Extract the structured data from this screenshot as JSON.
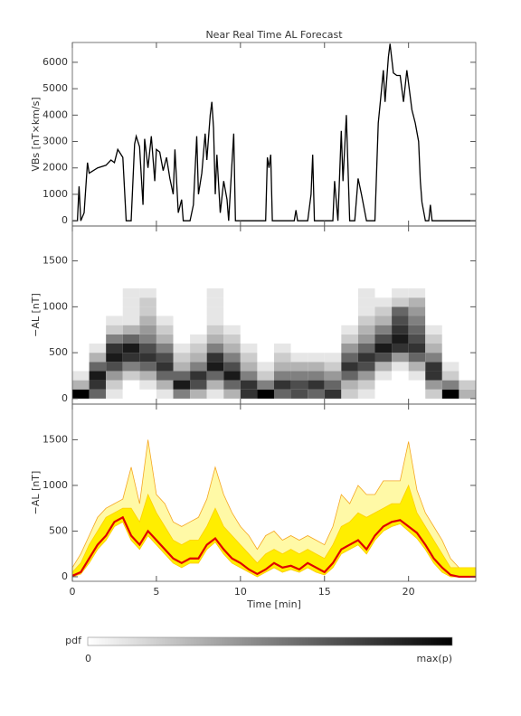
{
  "chart_data": [
    {
      "type": "line",
      "title": "Near Real Time AL Forecast",
      "ylabel": "VBs [nT×km/s]",
      "color": "#000000",
      "xlim": [
        0,
        24
      ],
      "ylim": [
        -200,
        6750
      ],
      "yticks": [
        0,
        1000,
        2000,
        3000,
        4000,
        5000,
        6000
      ],
      "x": [
        0,
        0.3,
        0.4,
        0.5,
        0.7,
        0.9,
        1,
        1.5,
        2,
        2.3,
        2.5,
        2.7,
        3,
        3.2,
        3.5,
        3.7,
        3.8,
        4,
        4.2,
        4.3,
        4.5,
        4.7,
        4.9,
        5,
        5.2,
        5.4,
        5.6,
        5.8,
        6,
        6.1,
        6.3,
        6.5,
        6.6,
        7,
        7.2,
        7.4,
        7.5,
        7.7,
        7.9,
        8,
        8.2,
        8.3,
        8.4,
        8.5,
        8.6,
        8.8,
        9,
        9.2,
        9.3,
        9.5,
        9.6,
        9.7,
        11.5,
        11.6,
        11.7,
        11.8,
        11.9,
        13.2,
        13.3,
        13.4,
        14,
        14.2,
        14.3,
        14.4,
        15.5,
        15.6,
        15.8,
        16,
        16.1,
        16.3,
        16.5,
        16.8,
        17,
        17.2,
        17.5,
        18,
        18.2,
        18.4,
        18.5,
        18.6,
        18.8,
        18.9,
        19.1,
        19.3,
        19.5,
        19.7,
        19.9,
        20,
        20.2,
        20.4,
        20.6,
        20.7,
        20.8,
        21,
        21.2,
        21.3,
        21.4,
        24
      ],
      "values": [
        0,
        0,
        1300,
        0,
        300,
        2200,
        1800,
        2000,
        2100,
        2300,
        2200,
        2700,
        2400,
        0,
        0,
        2900,
        3200,
        2800,
        600,
        3100,
        2000,
        3200,
        1500,
        2700,
        2600,
        1900,
        2400,
        1600,
        1000,
        2700,
        300,
        800,
        0,
        0,
        600,
        3200,
        1000,
        1800,
        3300,
        2300,
        4000,
        4500,
        3500,
        1000,
        2500,
        300,
        1500,
        800,
        0,
        2200,
        3300,
        0,
        0,
        2400,
        2000,
        2500,
        0,
        0,
        400,
        0,
        0,
        1000,
        2500,
        0,
        0,
        1500,
        0,
        3400,
        1500,
        4000,
        0,
        0,
        1600,
        1000,
        0,
        0,
        3700,
        5000,
        5700,
        4500,
        6200,
        6700,
        5600,
        5500,
        5500,
        4500,
        5700,
        5200,
        4200,
        3700,
        3000,
        1500,
        700,
        0,
        0,
        600,
        0,
        0
      ]
    },
    {
      "type": "heatmap",
      "ylabel": "−AL [nT]",
      "colormap": [
        "#ffffff",
        "#000000"
      ],
      "xlim": [
        0,
        24
      ],
      "ylim": [
        -60,
        1880
      ],
      "yticks": [
        0,
        500,
        1000,
        1500
      ],
      "xbins": [
        0,
        1,
        2,
        3,
        4,
        5,
        6,
        7,
        8,
        9,
        10,
        11,
        12,
        13,
        14,
        15,
        16,
        17,
        18,
        19,
        20,
        21,
        22,
        23,
        24
      ],
      "ybins": [
        0,
        100,
        200,
        300,
        400,
        500,
        600,
        700,
        800,
        900,
        1000,
        1100,
        1200
      ],
      "z": [
        [
          1,
          0.6,
          0.1,
          0,
          0,
          0.1,
          0.5,
          0.3,
          0.1,
          0.3,
          0.8,
          1,
          0.6,
          0.7,
          0.6,
          0.8,
          0.2,
          0.1,
          0,
          0,
          0,
          0.2,
          1,
          0.3
        ],
        [
          0.3,
          0.8,
          0.2,
          0,
          0.1,
          0.3,
          0.9,
          0.7,
          0.3,
          0.6,
          0.8,
          0.5,
          0.8,
          0.7,
          0.8,
          0.6,
          0.3,
          0.2,
          0,
          0,
          0,
          0.4,
          0.5,
          0.2
        ],
        [
          0.1,
          0.9,
          0.4,
          0.2,
          0.3,
          0.6,
          0.6,
          0.8,
          0.6,
          0.9,
          0.5,
          0.2,
          0.5,
          0.5,
          0.5,
          0.4,
          0.6,
          0.4,
          0.1,
          0,
          0.1,
          0.8,
          0.2,
          0
        ],
        [
          0,
          0.6,
          0.7,
          0.5,
          0.6,
          0.8,
          0.3,
          0.5,
          0.9,
          0.7,
          0.3,
          0.1,
          0.3,
          0.3,
          0.3,
          0.2,
          0.8,
          0.7,
          0.3,
          0.1,
          0.3,
          0.8,
          0.1,
          0
        ],
        [
          0,
          0.3,
          0.9,
          0.8,
          0.8,
          0.7,
          0.2,
          0.3,
          0.8,
          0.5,
          0.2,
          0,
          0.2,
          0.1,
          0.1,
          0.1,
          0.6,
          0.8,
          0.7,
          0.4,
          0.6,
          0.5,
          0,
          0
        ],
        [
          0,
          0.1,
          0.8,
          0.9,
          0.7,
          0.5,
          0.1,
          0.2,
          0.5,
          0.3,
          0.1,
          0,
          0.1,
          0,
          0,
          0,
          0.4,
          0.6,
          0.9,
          0.8,
          0.8,
          0.3,
          0,
          0
        ],
        [
          0,
          0,
          0.5,
          0.6,
          0.5,
          0.3,
          0,
          0.1,
          0.3,
          0.2,
          0,
          0,
          0,
          0,
          0,
          0,
          0.2,
          0.4,
          0.7,
          0.9,
          0.7,
          0.2,
          0,
          0
        ],
        [
          0,
          0,
          0.2,
          0.3,
          0.4,
          0.2,
          0,
          0,
          0.2,
          0.1,
          0,
          0,
          0,
          0,
          0,
          0,
          0.1,
          0.3,
          0.5,
          0.8,
          0.6,
          0.1,
          0,
          0
        ],
        [
          0,
          0,
          0.1,
          0.1,
          0.3,
          0.1,
          0,
          0,
          0.1,
          0,
          0,
          0,
          0,
          0,
          0,
          0,
          0,
          0.2,
          0.3,
          0.7,
          0.5,
          0,
          0,
          0
        ],
        [
          0,
          0,
          0,
          0.1,
          0.2,
          0,
          0,
          0,
          0.1,
          0,
          0,
          0,
          0,
          0,
          0,
          0,
          0,
          0.1,
          0.2,
          0.6,
          0.4,
          0,
          0,
          0
        ],
        [
          0,
          0,
          0,
          0.1,
          0.2,
          0,
          0,
          0,
          0.1,
          0,
          0,
          0,
          0,
          0,
          0,
          0,
          0,
          0.1,
          0.1,
          0.2,
          0.3,
          0,
          0,
          0
        ],
        [
          0,
          0,
          0,
          0.1,
          0.1,
          0,
          0,
          0,
          0.1,
          0,
          0,
          0,
          0,
          0,
          0,
          0,
          0,
          0.1,
          0,
          0.1,
          0.1,
          0,
          0,
          0
        ]
      ]
    },
    {
      "type": "band",
      "ylabel": "−AL [nT]",
      "xlabel": "Time [min]",
      "xlim": [
        0,
        24
      ],
      "ylim": [
        -50,
        1890
      ],
      "yticks": [
        0,
        500,
        1000,
        1500
      ],
      "xticks": [
        0,
        5,
        10,
        15,
        20
      ],
      "x": [
        0,
        0.5,
        1,
        1.5,
        2,
        2.5,
        3,
        3.5,
        4,
        4.5,
        5,
        5.5,
        6,
        6.5,
        7,
        7.5,
        8,
        8.5,
        9,
        9.5,
        10,
        10.5,
        11,
        11.5,
        12,
        12.5,
        13,
        13.5,
        14,
        14.5,
        15,
        15.5,
        16,
        16.5,
        17,
        17.5,
        18,
        18.5,
        19,
        19.5,
        20,
        20.5,
        21,
        21.5,
        22,
        22.5,
        23,
        23.5,
        24
      ],
      "lower": [
        0,
        30,
        150,
        300,
        400,
        550,
        600,
        400,
        300,
        450,
        350,
        250,
        150,
        100,
        150,
        150,
        300,
        380,
        250,
        150,
        100,
        50,
        0,
        50,
        100,
        50,
        80,
        50,
        100,
        50,
        20,
        100,
        250,
        300,
        350,
        250,
        400,
        500,
        550,
        580,
        500,
        420,
        300,
        150,
        50,
        0,
        0,
        0,
        0
      ],
      "bands": [
        {
          "color": "#fff9a6",
          "edge": "#f5a623",
          "upper": [
            100,
            250,
            450,
            650,
            750,
            800,
            850,
            1200,
            800,
            1500,
            900,
            800,
            600,
            550,
            600,
            650,
            850,
            1200,
            900,
            700,
            550,
            450,
            300,
            450,
            500,
            400,
            450,
            400,
            450,
            400,
            350,
            550,
            900,
            800,
            1000,
            900,
            900,
            1050,
            1050,
            1050,
            1480,
            950,
            700,
            550,
            400,
            200,
            100,
            100,
            100
          ]
        },
        {
          "color": "#ffee00",
          "edge": "#ffd000",
          "upper": [
            50,
            150,
            350,
            500,
            650,
            700,
            750,
            750,
            600,
            900,
            700,
            550,
            400,
            350,
            400,
            400,
            550,
            750,
            550,
            450,
            350,
            250,
            150,
            250,
            300,
            250,
            300,
            250,
            300,
            250,
            200,
            350,
            550,
            600,
            700,
            650,
            700,
            750,
            800,
            800,
            1000,
            700,
            550,
            400,
            250,
            100,
            100,
            100,
            100
          ]
        }
      ],
      "median": {
        "color": "#e00000",
        "values": [
          10,
          50,
          200,
          350,
          450,
          600,
          650,
          450,
          350,
          500,
          400,
          300,
          200,
          150,
          200,
          200,
          350,
          420,
          300,
          200,
          150,
          80,
          30,
          80,
          150,
          100,
          120,
          80,
          150,
          100,
          50,
          150,
          300,
          350,
          400,
          300,
          450,
          550,
          600,
          620,
          550,
          480,
          350,
          200,
          100,
          20,
          0,
          0,
          0
        ]
      }
    },
    {
      "type": "colorbar",
      "label": "pdf",
      "min": 0,
      "max_label": "max(p)",
      "colormap": [
        "#ffffff",
        "#000000"
      ]
    }
  ]
}
